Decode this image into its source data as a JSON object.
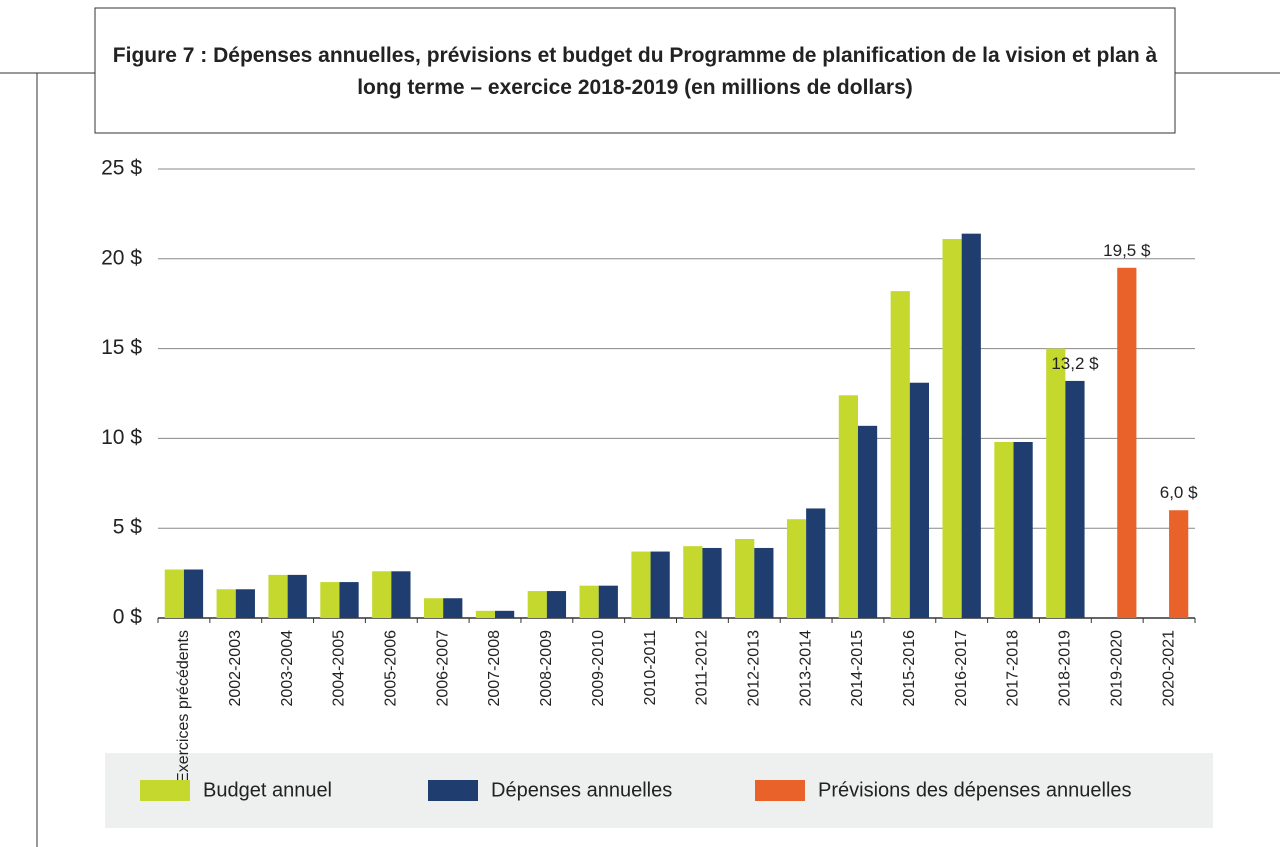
{
  "chart_data": {
    "type": "bar",
    "title": "Figure 7 : Dépenses annuelles, prévisions et budget du Programme de planification de la vision et plan à long terme – exercice 2018-2019 (en millions de dollars)",
    "categories": [
      "Exercices précédents",
      "2002-2003",
      "2003-2004",
      "2004-2005",
      "2005-2006",
      "2006-2007",
      "2007-2008",
      "2008-2009",
      "2009-2010",
      "2010-2011",
      "2011-2012",
      "2012-2013",
      "2013-2014",
      "2014-2015",
      "2015-2016",
      "2016-2017",
      "2017-2018",
      "2018-2019",
      "2019-2020",
      "2020-2021"
    ],
    "series": [
      {
        "name": "Budget annuel",
        "color": "#c4d82e",
        "values": [
          2.7,
          1.6,
          2.4,
          2.0,
          2.6,
          1.1,
          0.4,
          1.5,
          1.8,
          3.7,
          4.0,
          4.4,
          5.5,
          12.4,
          18.2,
          21.1,
          9.8,
          15.0,
          null,
          null
        ]
      },
      {
        "name": "Dépenses annuelles",
        "color": "#1f3d6e",
        "values": [
          2.7,
          1.6,
          2.4,
          2.0,
          2.6,
          1.1,
          0.4,
          1.5,
          1.8,
          3.7,
          3.9,
          3.9,
          6.1,
          10.7,
          13.1,
          21.4,
          9.8,
          13.2,
          null,
          null
        ],
        "value_labels": [
          null,
          null,
          null,
          null,
          null,
          null,
          null,
          null,
          null,
          null,
          null,
          null,
          null,
          null,
          null,
          null,
          null,
          "13,2 $",
          null,
          null
        ]
      },
      {
        "name": "Prévisions des dépenses annuelles",
        "color": "#e8622a",
        "values": [
          null,
          null,
          null,
          null,
          null,
          null,
          null,
          null,
          null,
          null,
          null,
          null,
          null,
          null,
          null,
          null,
          null,
          null,
          19.5,
          6.0
        ],
        "value_labels": [
          null,
          null,
          null,
          null,
          null,
          null,
          null,
          null,
          null,
          null,
          null,
          null,
          null,
          null,
          null,
          null,
          null,
          null,
          "19,5 $",
          "6,0 $"
        ]
      }
    ],
    "ylim": [
      0,
      25
    ],
    "yticks": [
      {
        "value": 0,
        "label": "0 $"
      },
      {
        "value": 5,
        "label": "5 $"
      },
      {
        "value": 10,
        "label": "10 $"
      },
      {
        "value": 15,
        "label": "15 $"
      },
      {
        "value": 20,
        "label": "20 $"
      },
      {
        "value": 25,
        "label": "25 $"
      }
    ],
    "grid": true
  }
}
